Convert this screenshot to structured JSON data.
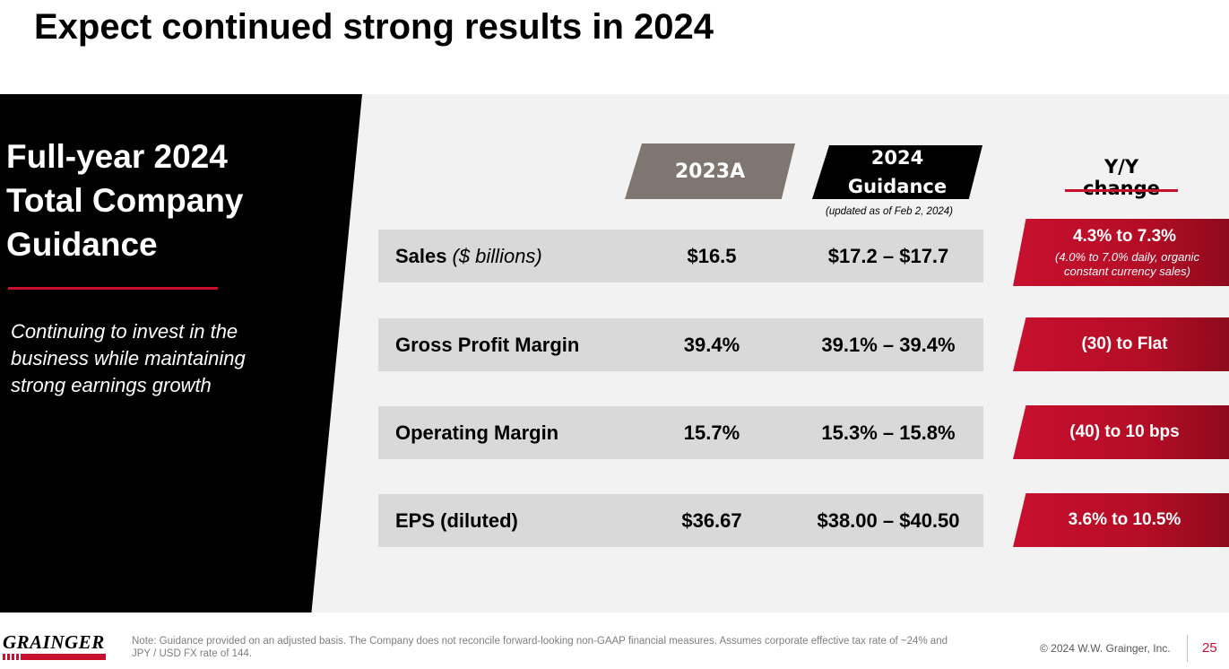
{
  "title": "Expect continued strong results in 2024",
  "panel": {
    "heading_lines": [
      "Full-year 2024",
      "Total Company",
      "Guidance"
    ],
    "subtitle_lines": [
      "Continuing to invest in the",
      "business while maintaining",
      "strong earnings growth"
    ]
  },
  "columns": {
    "actual": "2023A",
    "guidance_line1": "2024",
    "guidance_line2": "Guidance",
    "guidance_note": "(updated as of Feb 2, 2024)",
    "change": "Y/Y change"
  },
  "rows": [
    {
      "metric": "Sales",
      "unit": "($ billions)",
      "actual": "$16.5",
      "guidance": "$17.2 – $17.7",
      "change": "4.3% to 7.3%",
      "change_note_lines": [
        "(4.0% to 7.0% daily, organic",
        "constant currency sales)"
      ]
    },
    {
      "metric": "Gross Profit Margin",
      "unit": "",
      "actual": "39.4%",
      "guidance": "39.1% – 39.4%",
      "change": "(30) to Flat"
    },
    {
      "metric": "Operating Margin",
      "unit": "",
      "actual": "15.7%",
      "guidance": "15.3% – 15.8%",
      "change": "(40) to 10 bps"
    },
    {
      "metric": "EPS (diluted)",
      "unit": "",
      "actual": "$36.67",
      "guidance": "$38.00 – $40.50",
      "change": "3.6% to 10.5%"
    }
  ],
  "footer": {
    "logo": "GRAINGER",
    "note_lines": [
      "Note: Guidance provided on an adjusted basis. The Company does not reconcile forward-looking non-GAAP financial measures. Assumes corporate effective tax rate of ~24% and",
      "JPY / USD FX rate of 144."
    ],
    "copyright": "© 2024 W.W. Grainger, Inc.",
    "page_number": "25"
  },
  "colors": {
    "accent": "#c8102e",
    "actual_header": "#7f7672",
    "row_bg": "#d9d9d9",
    "panel_bg": "#000000"
  }
}
